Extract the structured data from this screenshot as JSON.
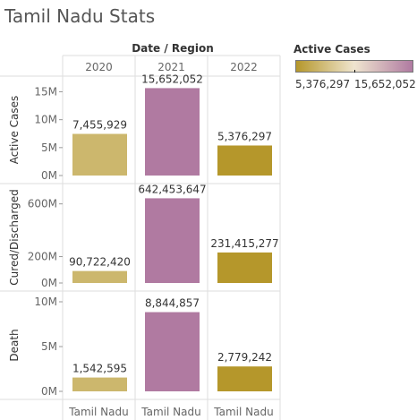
{
  "title": "Tamil Nadu Stats",
  "legend": {
    "title": "Active Cases",
    "min_label": "5,376,297",
    "max_label": "15,652,052",
    "min_color": "#b5972b",
    "mid_color": "#efe5cf",
    "max_color": "#b07aa1"
  },
  "chart_data": {
    "type": "bar",
    "column_header": "Date / Region",
    "years": [
      "2020",
      "2021",
      "2022"
    ],
    "region": "Tamil Nadu",
    "color_by": "Active Cases",
    "active_cases_by_year": [
      7455929,
      15652052,
      5376297
    ],
    "rows": [
      {
        "name": "Active Cases",
        "values": [
          7455929,
          15652052,
          5376297
        ],
        "labels": [
          "7,455,929",
          "15,652,052",
          "5,376,297"
        ],
        "ylim": [
          0,
          17000000
        ],
        "ticks": [
          0,
          5000000,
          10000000,
          15000000
        ],
        "tick_labels": [
          "0M",
          "5M",
          "10M",
          "15M"
        ]
      },
      {
        "name": "Cured/Discharged",
        "values": [
          90722420,
          642453647,
          231415277
        ],
        "labels": [
          "90,722,420",
          "642,453,647",
          "231,415,277"
        ],
        "ylim": [
          0,
          720000000
        ],
        "ticks": [
          0,
          200000000,
          600000000
        ],
        "tick_labels": [
          "0M",
          "200M",
          "600M"
        ]
      },
      {
        "name": "Death",
        "values": [
          1542595,
          8844857,
          2779242
        ],
        "labels": [
          "1,542,595",
          "8,844,857",
          "2,779,242"
        ],
        "ylim": [
          0,
          10700000
        ],
        "ticks": [
          0,
          5000000,
          10000000
        ],
        "tick_labels": [
          "0M",
          "5M",
          "10M"
        ]
      }
    ]
  }
}
